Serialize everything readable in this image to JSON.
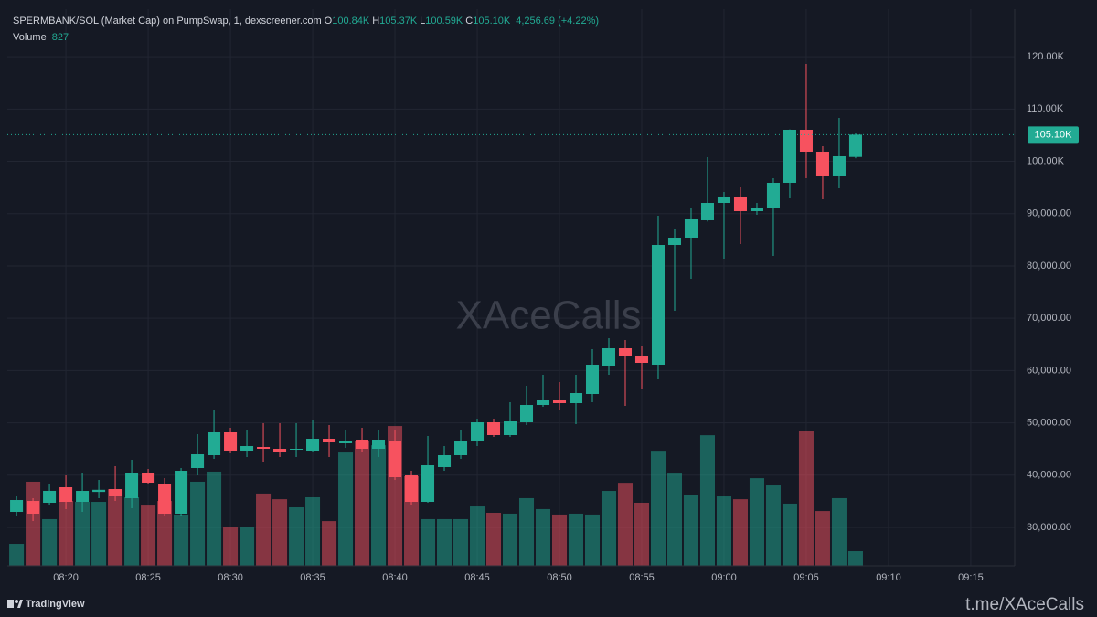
{
  "chart_data": {
    "type": "candlestick",
    "title": "SPERMBANK/SOL (Market Cap) on PumpSwap, 1, dexscreener.com",
    "ohlc_header": [
      {
        "prefix": "O",
        "label": "100.84K"
      },
      {
        "prefix": "H",
        "label": "105.37K"
      },
      {
        "prefix": "L",
        "label": "100.59K"
      },
      {
        "prefix": "C",
        "label": "105.10K"
      }
    ],
    "change_label": "4,256.69 (+4.22%)",
    "volume_title": "Volume",
    "last_price_label": "105.10K",
    "watermark": "XAceCalls",
    "footer_left": "TradingView",
    "footer_right": "t.me/XAceCalls",
    "up_color": "#22ab94",
    "down_color": "#f7525f",
    "grid": true,
    "x": [
      17,
      18,
      19,
      20,
      21,
      22,
      23,
      24,
      25,
      26,
      27,
      28,
      29,
      30,
      31,
      32,
      33,
      34,
      35,
      36,
      37,
      38,
      39,
      40,
      41,
      42,
      43,
      44,
      45,
      46,
      47,
      48,
      49,
      50,
      51,
      52,
      53,
      54,
      55,
      56,
      57,
      58,
      59,
      60,
      61,
      62,
      63,
      64,
      65,
      66,
      67,
      68
    ],
    "open": [
      32972,
      35069,
      34720,
      37691,
      34894,
      36800,
      37342,
      35593,
      40488,
      38390,
      32622,
      41362,
      43810,
      48180,
      44683,
      45383,
      45033,
      44858,
      44683,
      46956,
      46082,
      46781,
      45033,
      46606,
      39963,
      34894,
      41537,
      43810,
      46606,
      50102,
      47655,
      50102,
      53423,
      54297,
      53773,
      55521,
      60939,
      64260,
      62862,
      61114,
      84013,
      85412,
      88733,
      92054,
      93278,
      90481,
      91005,
      95900,
      106038,
      101843,
      97298,
      100840
    ],
    "high": [
      35943,
      35594,
      38216,
      39964,
      40313,
      39090,
      41712,
      42935,
      41187,
      39439,
      41362,
      47830,
      52549,
      49053,
      48704,
      49927,
      49927,
      49927,
      50452,
      49578,
      48704,
      49053,
      48704,
      48704,
      40838,
      47480,
      45557,
      48704,
      50801,
      50801,
      53948,
      57094,
      59192,
      57794,
      59192,
      64086,
      66184,
      65834,
      64785,
      89607,
      87160,
      91005,
      100794,
      94152,
      95026,
      92054,
      96774,
      106100,
      118624,
      102892,
      108310,
      105370
    ],
    "low": [
      32098,
      31224,
      34195,
      33496,
      32972,
      35594,
      35069,
      33671,
      38216,
      32098,
      32272,
      39964,
      43110,
      44159,
      43460,
      42586,
      43460,
      43460,
      44334,
      43460,
      45208,
      44334,
      43460,
      39090,
      34370,
      34720,
      40838,
      43110,
      45557,
      47305,
      47305,
      49578,
      53074,
      52549,
      49753,
      53948,
      59192,
      53248,
      56395,
      58318,
      71428,
      77546,
      88500,
      81391,
      84188,
      89782,
      81916,
      92928,
      96774,
      92754,
      94851,
      100590
    ],
    "close": [
      35244,
      32622,
      37000,
      34894,
      36992,
      37200,
      35943,
      40313,
      38565,
      32622,
      40838,
      43984,
      48180,
      44683,
      45557,
      45033,
      44508,
      45033,
      46956,
      46256,
      46431,
      45033,
      46781,
      39614,
      34894,
      41886,
      43810,
      46606,
      50102,
      47655,
      50277,
      53423,
      54297,
      53773,
      55696,
      61114,
      64260,
      62862,
      61464,
      84013,
      85412,
      88908,
      92054,
      93278,
      90481,
      91005,
      95900,
      106038,
      101843,
      97298,
      100969,
      105100
    ],
    "volume": [
      1240,
      4760,
      2640,
      3670,
      3620,
      3620,
      4340,
      3880,
      3410,
      3670,
      2900,
      4760,
      5330,
      2170,
      2170,
      4090,
      3770,
      3310,
      3880,
      2530,
      6410,
      7080,
      6820,
      7910,
      5070,
      2640,
      2640,
      2640,
      3360,
      3000,
      2950,
      3830,
      3210,
      2900,
      2950,
      2900,
      4240,
      4700,
      3570,
      6510,
      5220,
      4030,
      7390,
      3930,
      3770,
      4960,
      4550,
      3520,
      7650,
      3100,
      3830,
      827
    ],
    "volume_ylim": [
      0,
      31500
    ],
    "xlim": [
      16.44,
      77.67
    ],
    "xticks": [
      {
        "value": 20,
        "label": "08:20"
      },
      {
        "value": 25,
        "label": "08:25"
      },
      {
        "value": 30,
        "label": "08:30"
      },
      {
        "value": 35,
        "label": "08:35"
      },
      {
        "value": 40,
        "label": "08:40"
      },
      {
        "value": 45,
        "label": "08:45"
      },
      {
        "value": 50,
        "label": "08:50"
      },
      {
        "value": 55,
        "label": "08:55"
      },
      {
        "value": 60,
        "label": "09:00"
      },
      {
        "value": 65,
        "label": "09:05"
      },
      {
        "value": 70,
        "label": "09:10"
      },
      {
        "value": 75,
        "label": "09:15"
      }
    ],
    "ylim": [
      22660,
      129110
    ],
    "yticks": [
      {
        "value": 30000,
        "label": "30,000.00"
      },
      {
        "value": 40000,
        "label": "40,000.00"
      },
      {
        "value": 50000,
        "label": "50,000.00"
      },
      {
        "value": 60000,
        "label": "60,000.00"
      },
      {
        "value": 70000,
        "label": "70,000.00"
      },
      {
        "value": 80000,
        "label": "80,000.00"
      },
      {
        "value": 90000,
        "label": "90,000.00"
      },
      {
        "value": 100000,
        "label": "100.00K"
      },
      {
        "value": 110000,
        "label": "110.00K"
      },
      {
        "value": 120000,
        "label": "120.00K"
      }
    ]
  }
}
